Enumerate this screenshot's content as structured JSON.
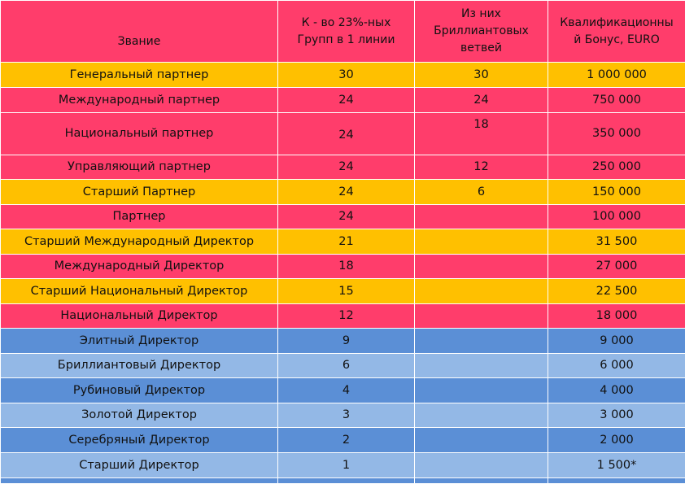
{
  "headers": {
    "rank": "Звание",
    "groups": [
      "К - во 23%-ных",
      "Групп в 1 линии"
    ],
    "diamond": [
      "Из них",
      "Бриллиантовых",
      "ветвей"
    ],
    "bonus": [
      "Квалификационны",
      "й Бонус, EURO"
    ]
  },
  "rows": [
    {
      "rank": "Генеральный партнер",
      "groups": "30",
      "diamond": "30",
      "bonus": "1 000 000"
    },
    {
      "rank": "Международный партнер",
      "groups": "24",
      "diamond": "24",
      "bonus": "750 000"
    },
    {
      "rank": "Национальный партнер",
      "groups": "24",
      "diamond": "18",
      "bonus": "350 000"
    },
    {
      "rank": "Управляющий партнер",
      "groups": "24",
      "diamond": "12",
      "bonus": "250 000"
    },
    {
      "rank": "Старший Партнер",
      "groups": "24",
      "diamond": "6",
      "bonus": "150 000"
    },
    {
      "rank": "Партнер",
      "groups": "24",
      "diamond": "",
      "bonus": "100 000"
    },
    {
      "rank": "Старший Международный Директор",
      "groups": "21",
      "diamond": "",
      "bonus": "31 500"
    },
    {
      "rank": "Международный Директор",
      "groups": "18",
      "diamond": "",
      "bonus": "27 000"
    },
    {
      "rank": "Старший Национальный Директор",
      "groups": "15",
      "diamond": "",
      "bonus": "22 500"
    },
    {
      "rank": "Национальный Директор",
      "groups": "12",
      "diamond": "",
      "bonus": "18 000"
    },
    {
      "rank": "Элитный Директор",
      "groups": "9",
      "diamond": "",
      "bonus": "9 000"
    },
    {
      "rank": "Бриллиантовый Директор",
      "groups": "6",
      "diamond": "",
      "bonus": "6 000"
    },
    {
      "rank": "Рубиновый Директор",
      "groups": "4",
      "diamond": "",
      "bonus": "4 000"
    },
    {
      "rank": "Золотой Директор",
      "groups": "3",
      "diamond": "",
      "bonus": "3 000"
    },
    {
      "rank": "Серебряный Директор",
      "groups": "2",
      "diamond": "",
      "bonus": "2 000"
    },
    {
      "rank": "Старший Директор",
      "groups": "1",
      "diamond": "",
      "bonus": "1 500*"
    }
  ],
  "colors": {
    "pink": "#ff3d6b",
    "amber": "#ffc000",
    "blue_dark": "#5b8fd6",
    "blue_light": "#93b8e6"
  }
}
